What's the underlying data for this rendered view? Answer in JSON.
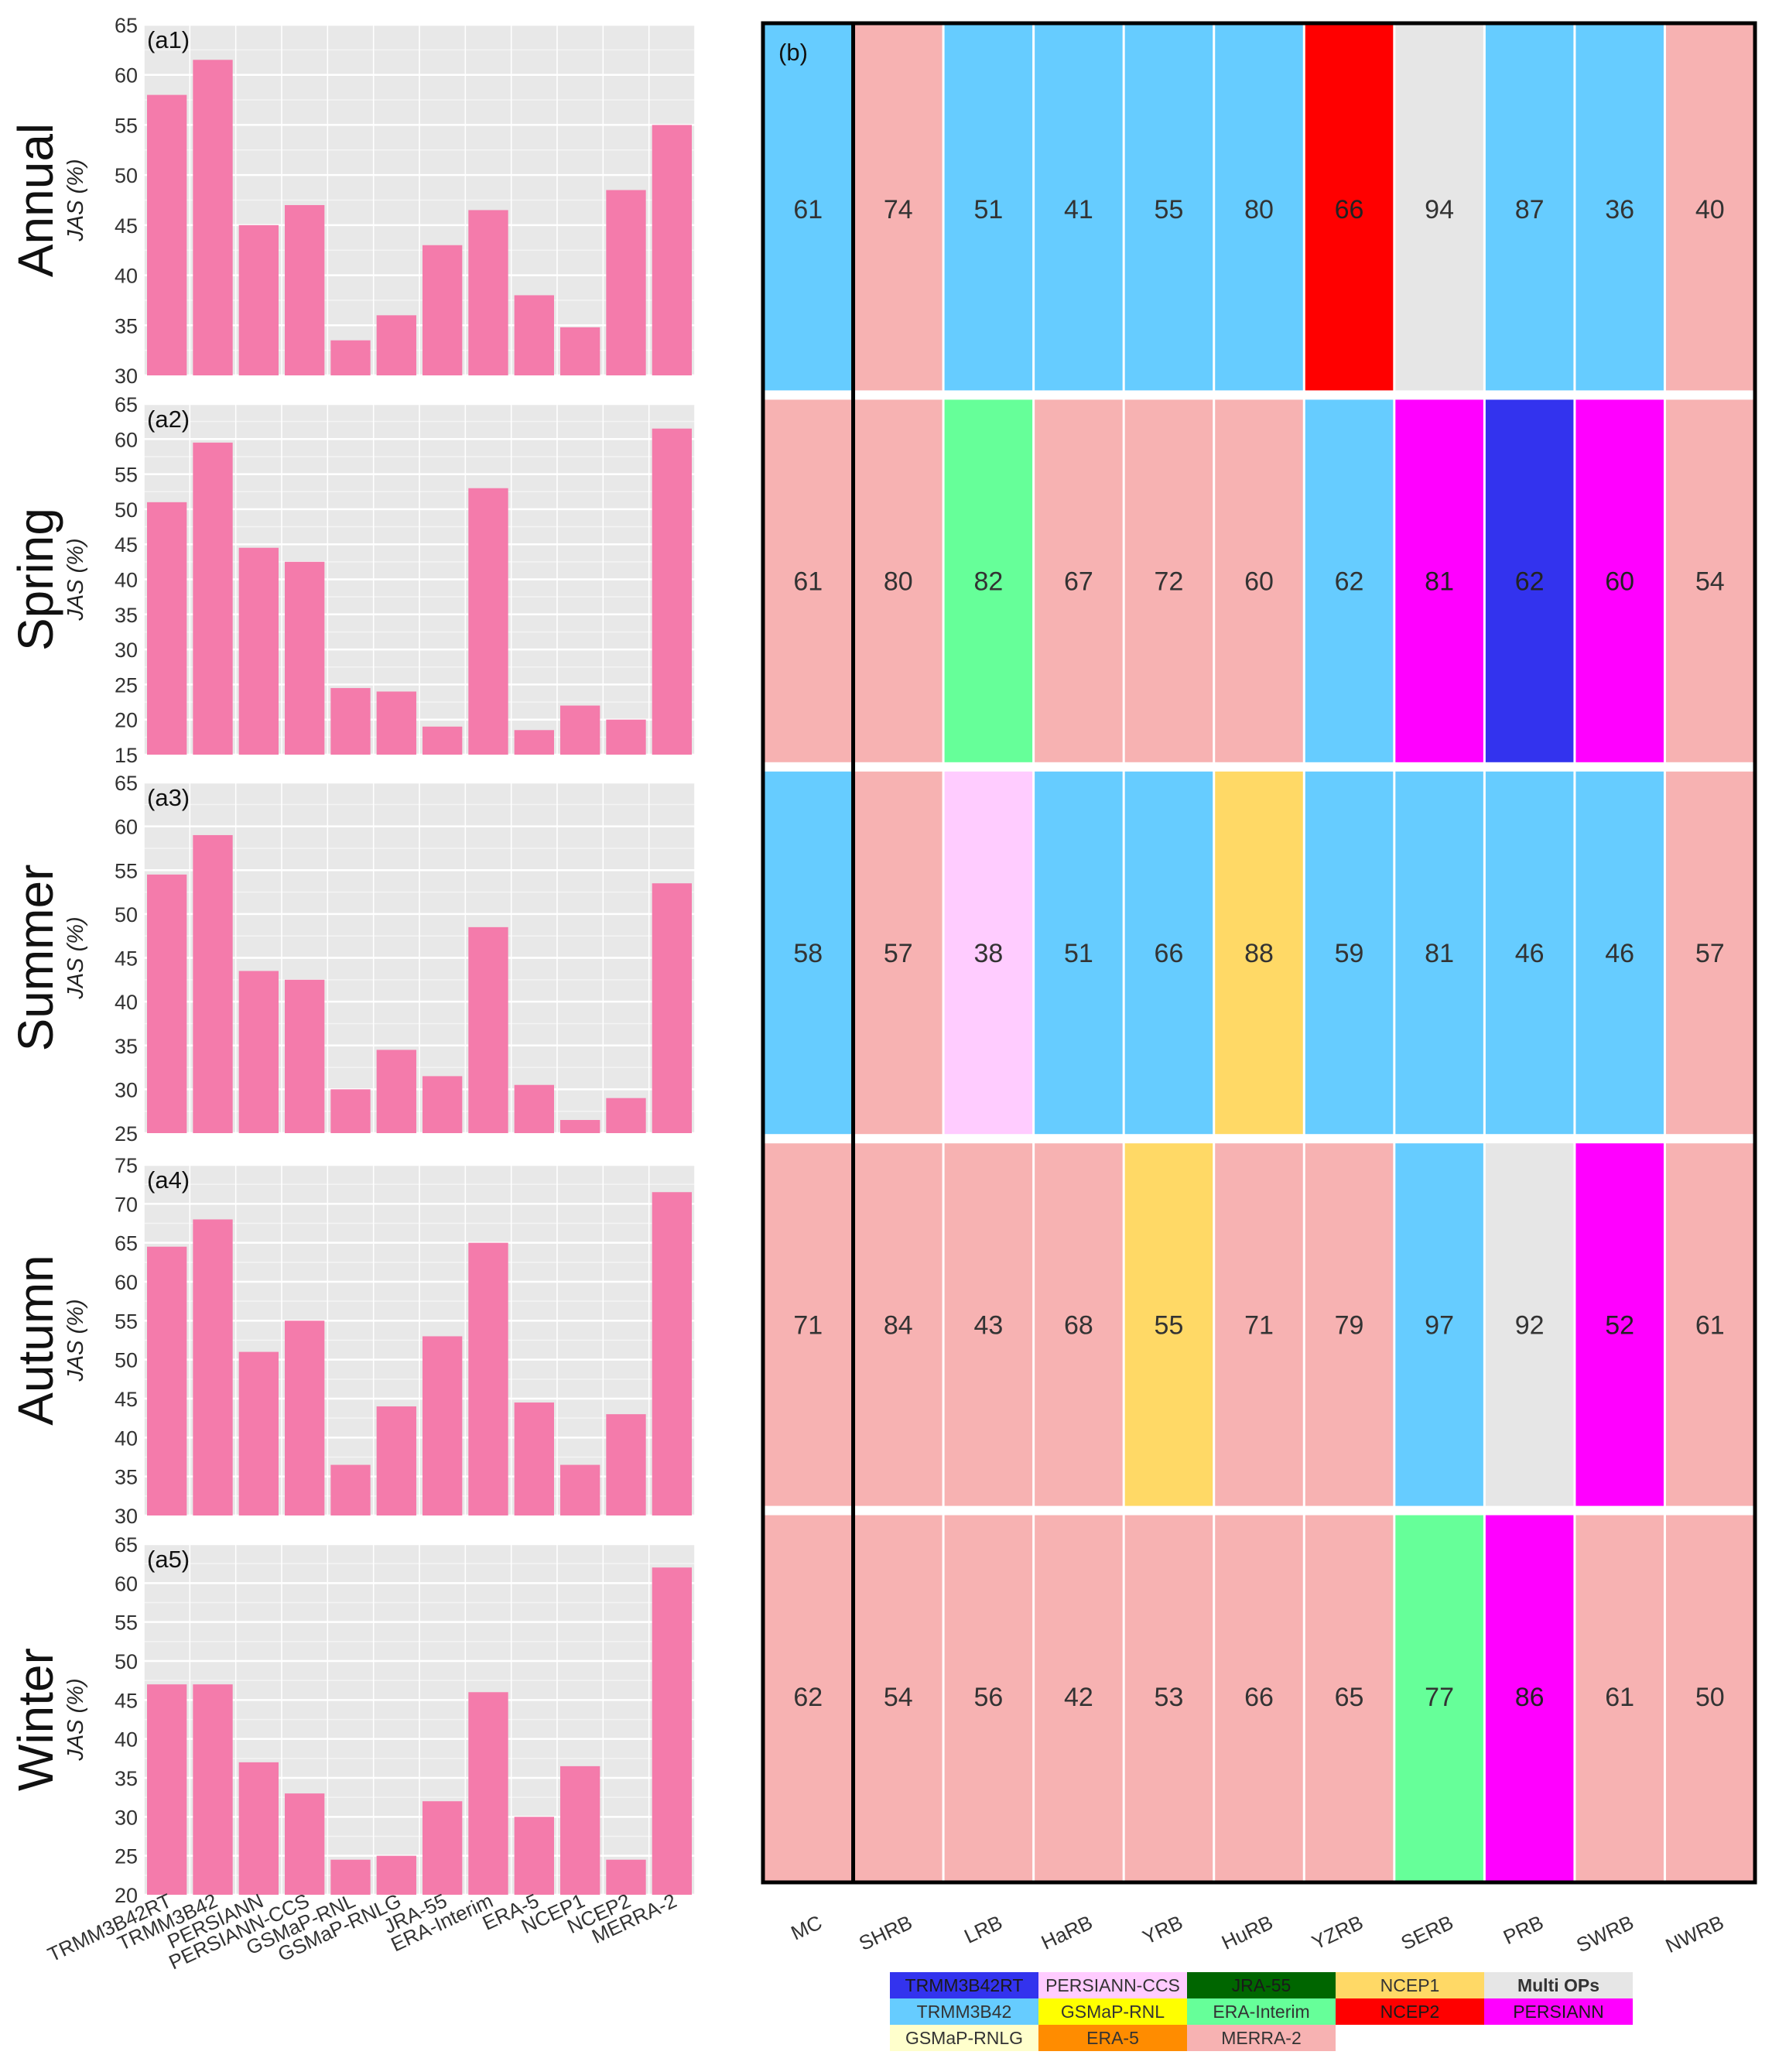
{
  "chart_data": [
    {
      "type": "bar",
      "panel_label": "(a1)",
      "row_title": "Annual",
      "ylabel": "JAS (%)",
      "ylim": [
        30,
        65
      ],
      "yticks": [
        30,
        35,
        40,
        45,
        50,
        55,
        60,
        65
      ],
      "categories": [
        "TRMM3B42RT",
        "TRMM3B42",
        "PERSIANN",
        "PERSIANN-CCS",
        "GSMaP-RNL",
        "GSMaP-RNLG",
        "JRA-55",
        "ERA-Interim",
        "ERA-5",
        "NCEP1",
        "NCEP2",
        "MERRA-2"
      ],
      "values": [
        58,
        61.5,
        45,
        47,
        33.5,
        36,
        43,
        46.5,
        38,
        34.8,
        48.5,
        55
      ]
    },
    {
      "type": "bar",
      "panel_label": "(a2)",
      "row_title": "Spring",
      "ylabel": "JAS (%)",
      "ylim": [
        15,
        65
      ],
      "yticks": [
        15,
        20,
        25,
        30,
        35,
        40,
        45,
        50,
        55,
        60,
        65
      ],
      "categories": [
        "TRMM3B42RT",
        "TRMM3B42",
        "PERSIANN",
        "PERSIANN-CCS",
        "GSMaP-RNL",
        "GSMaP-RNLG",
        "JRA-55",
        "ERA-Interim",
        "ERA-5",
        "NCEP1",
        "NCEP2",
        "MERRA-2"
      ],
      "values": [
        51,
        59.5,
        44.5,
        42.5,
        24.5,
        24,
        19,
        53,
        18.5,
        22,
        20,
        61.5
      ]
    },
    {
      "type": "bar",
      "panel_label": "(a3)",
      "row_title": "Summer",
      "ylabel": "JAS (%)",
      "ylim": [
        25,
        65
      ],
      "yticks": [
        25,
        30,
        35,
        40,
        45,
        50,
        55,
        60,
        65
      ],
      "categories": [
        "TRMM3B42RT",
        "TRMM3B42",
        "PERSIANN",
        "PERSIANN-CCS",
        "GSMaP-RNL",
        "GSMaP-RNLG",
        "JRA-55",
        "ERA-Interim",
        "ERA-5",
        "NCEP1",
        "NCEP2",
        "MERRA-2"
      ],
      "values": [
        54.5,
        59,
        43.5,
        42.5,
        30,
        34.5,
        31.5,
        48.5,
        30.5,
        26.5,
        29,
        53.5
      ]
    },
    {
      "type": "bar",
      "panel_label": "(a4)",
      "row_title": "Autumn",
      "ylabel": "JAS (%)",
      "ylim": [
        30,
        75
      ],
      "yticks": [
        30,
        35,
        40,
        45,
        50,
        55,
        60,
        65,
        70,
        75
      ],
      "categories": [
        "TRMM3B42RT",
        "TRMM3B42",
        "PERSIANN",
        "PERSIANN-CCS",
        "GSMaP-RNL",
        "GSMaP-RNLG",
        "JRA-55",
        "ERA-Interim",
        "ERA-5",
        "NCEP1",
        "NCEP2",
        "MERRA-2"
      ],
      "values": [
        64.5,
        68,
        51,
        55,
        36.5,
        44,
        53,
        65,
        44.5,
        36.5,
        43,
        71.5
      ]
    },
    {
      "type": "bar",
      "panel_label": "(a5)",
      "row_title": "Winter",
      "ylabel": "JAS (%)",
      "ylim": [
        20,
        65
      ],
      "yticks": [
        20,
        25,
        30,
        35,
        40,
        45,
        50,
        55,
        60,
        65
      ],
      "categories": [
        "TRMM3B42RT",
        "TRMM3B42",
        "PERSIANN",
        "PERSIANN-CCS",
        "GSMaP-RNL",
        "GSMaP-RNLG",
        "JRA-55",
        "ERA-Interim",
        "ERA-5",
        "NCEP1",
        "NCEP2",
        "MERRA-2"
      ],
      "values": [
        47,
        47,
        37,
        33,
        24.5,
        25,
        32,
        46,
        30,
        36.5,
        24.5,
        62
      ]
    },
    {
      "type": "heatmap",
      "panel_label": "(b)",
      "columns": [
        "MC",
        "SHRB",
        "LRB",
        "HaRB",
        "YRB",
        "HuRB",
        "YZRB",
        "SERB",
        "PRB",
        "SWRB",
        "NWRB"
      ],
      "rows": [
        {
          "name": "Annual",
          "values": [
            61,
            74,
            51,
            41,
            55,
            80,
            66,
            94,
            87,
            36,
            40
          ],
          "best_product": [
            "TRMM3B42",
            "MERRA-2",
            "TRMM3B42",
            "TRMM3B42",
            "TRMM3B42",
            "TRMM3B42",
            "NCEP2",
            "Multi OPs",
            "TRMM3B42",
            "TRMM3B42",
            "MERRA-2"
          ]
        },
        {
          "name": "Spring",
          "values": [
            61,
            80,
            82,
            67,
            72,
            60,
            62,
            81,
            62,
            60,
            54
          ],
          "best_product": [
            "MERRA-2",
            "MERRA-2",
            "ERA-Interim",
            "MERRA-2",
            "MERRA-2",
            "MERRA-2",
            "TRMM3B42",
            "PERSIANN",
            "TRMM3B42RT",
            "PERSIANN",
            "MERRA-2"
          ]
        },
        {
          "name": "Summer",
          "values": [
            58,
            57,
            38,
            51,
            66,
            88,
            59,
            81,
            46,
            46,
            57
          ],
          "best_product": [
            "TRMM3B42",
            "MERRA-2",
            "PERSIANN-CCS",
            "TRMM3B42",
            "TRMM3B42",
            "NCEP1",
            "TRMM3B42",
            "TRMM3B42",
            "TRMM3B42",
            "TRMM3B42",
            "MERRA-2"
          ]
        },
        {
          "name": "Autumn",
          "values": [
            71,
            84,
            43,
            68,
            55,
            71,
            79,
            97,
            92,
            52,
            61
          ],
          "best_product": [
            "MERRA-2",
            "MERRA-2",
            "MERRA-2",
            "MERRA-2",
            "NCEP1",
            "MERRA-2",
            "MERRA-2",
            "TRMM3B42",
            "Multi OPs",
            "PERSIANN",
            "MERRA-2"
          ]
        },
        {
          "name": "Winter",
          "values": [
            62,
            54,
            56,
            42,
            53,
            66,
            65,
            77,
            86,
            61,
            50
          ],
          "best_product": [
            "MERRA-2",
            "MERRA-2",
            "MERRA-2",
            "MERRA-2",
            "MERRA-2",
            "MERRA-2",
            "MERRA-2",
            "ERA-Interim",
            "PERSIANN",
            "MERRA-2",
            "MERRA-2"
          ]
        }
      ]
    }
  ],
  "legend": {
    "items": [
      {
        "label": "TRMM3B42RT",
        "color": "#3333ee"
      },
      {
        "label": "PERSIANN-CCS",
        "color": "#ffccff"
      },
      {
        "label": "JRA-55",
        "color": "#006600"
      },
      {
        "label": "NCEP1",
        "color": "#ffd966"
      },
      {
        "label": "Multi OPs",
        "color": "#e6e6e6"
      },
      {
        "label": "TRMM3B42",
        "color": "#66ccff"
      },
      {
        "label": "GSMaP-RNL",
        "color": "#ffff00"
      },
      {
        "label": "ERA-Interim",
        "color": "#66ff99"
      },
      {
        "label": "NCEP2",
        "color": "#ff0000"
      },
      {
        "label": "PERSIANN",
        "color": "#ff00ff"
      },
      {
        "label": "GSMaP-RNLG",
        "color": "#ffffcc"
      },
      {
        "label": "ERA-5",
        "color": "#ff8c00"
      },
      {
        "label": "MERRA-2",
        "color": "#f7b2b2"
      }
    ]
  },
  "colors": {
    "bar": "#f47bab",
    "panel_bg": "#e8e8e8",
    "grid": "#ffffff",
    "frame": "#000000",
    "tick_text": "#333333"
  }
}
